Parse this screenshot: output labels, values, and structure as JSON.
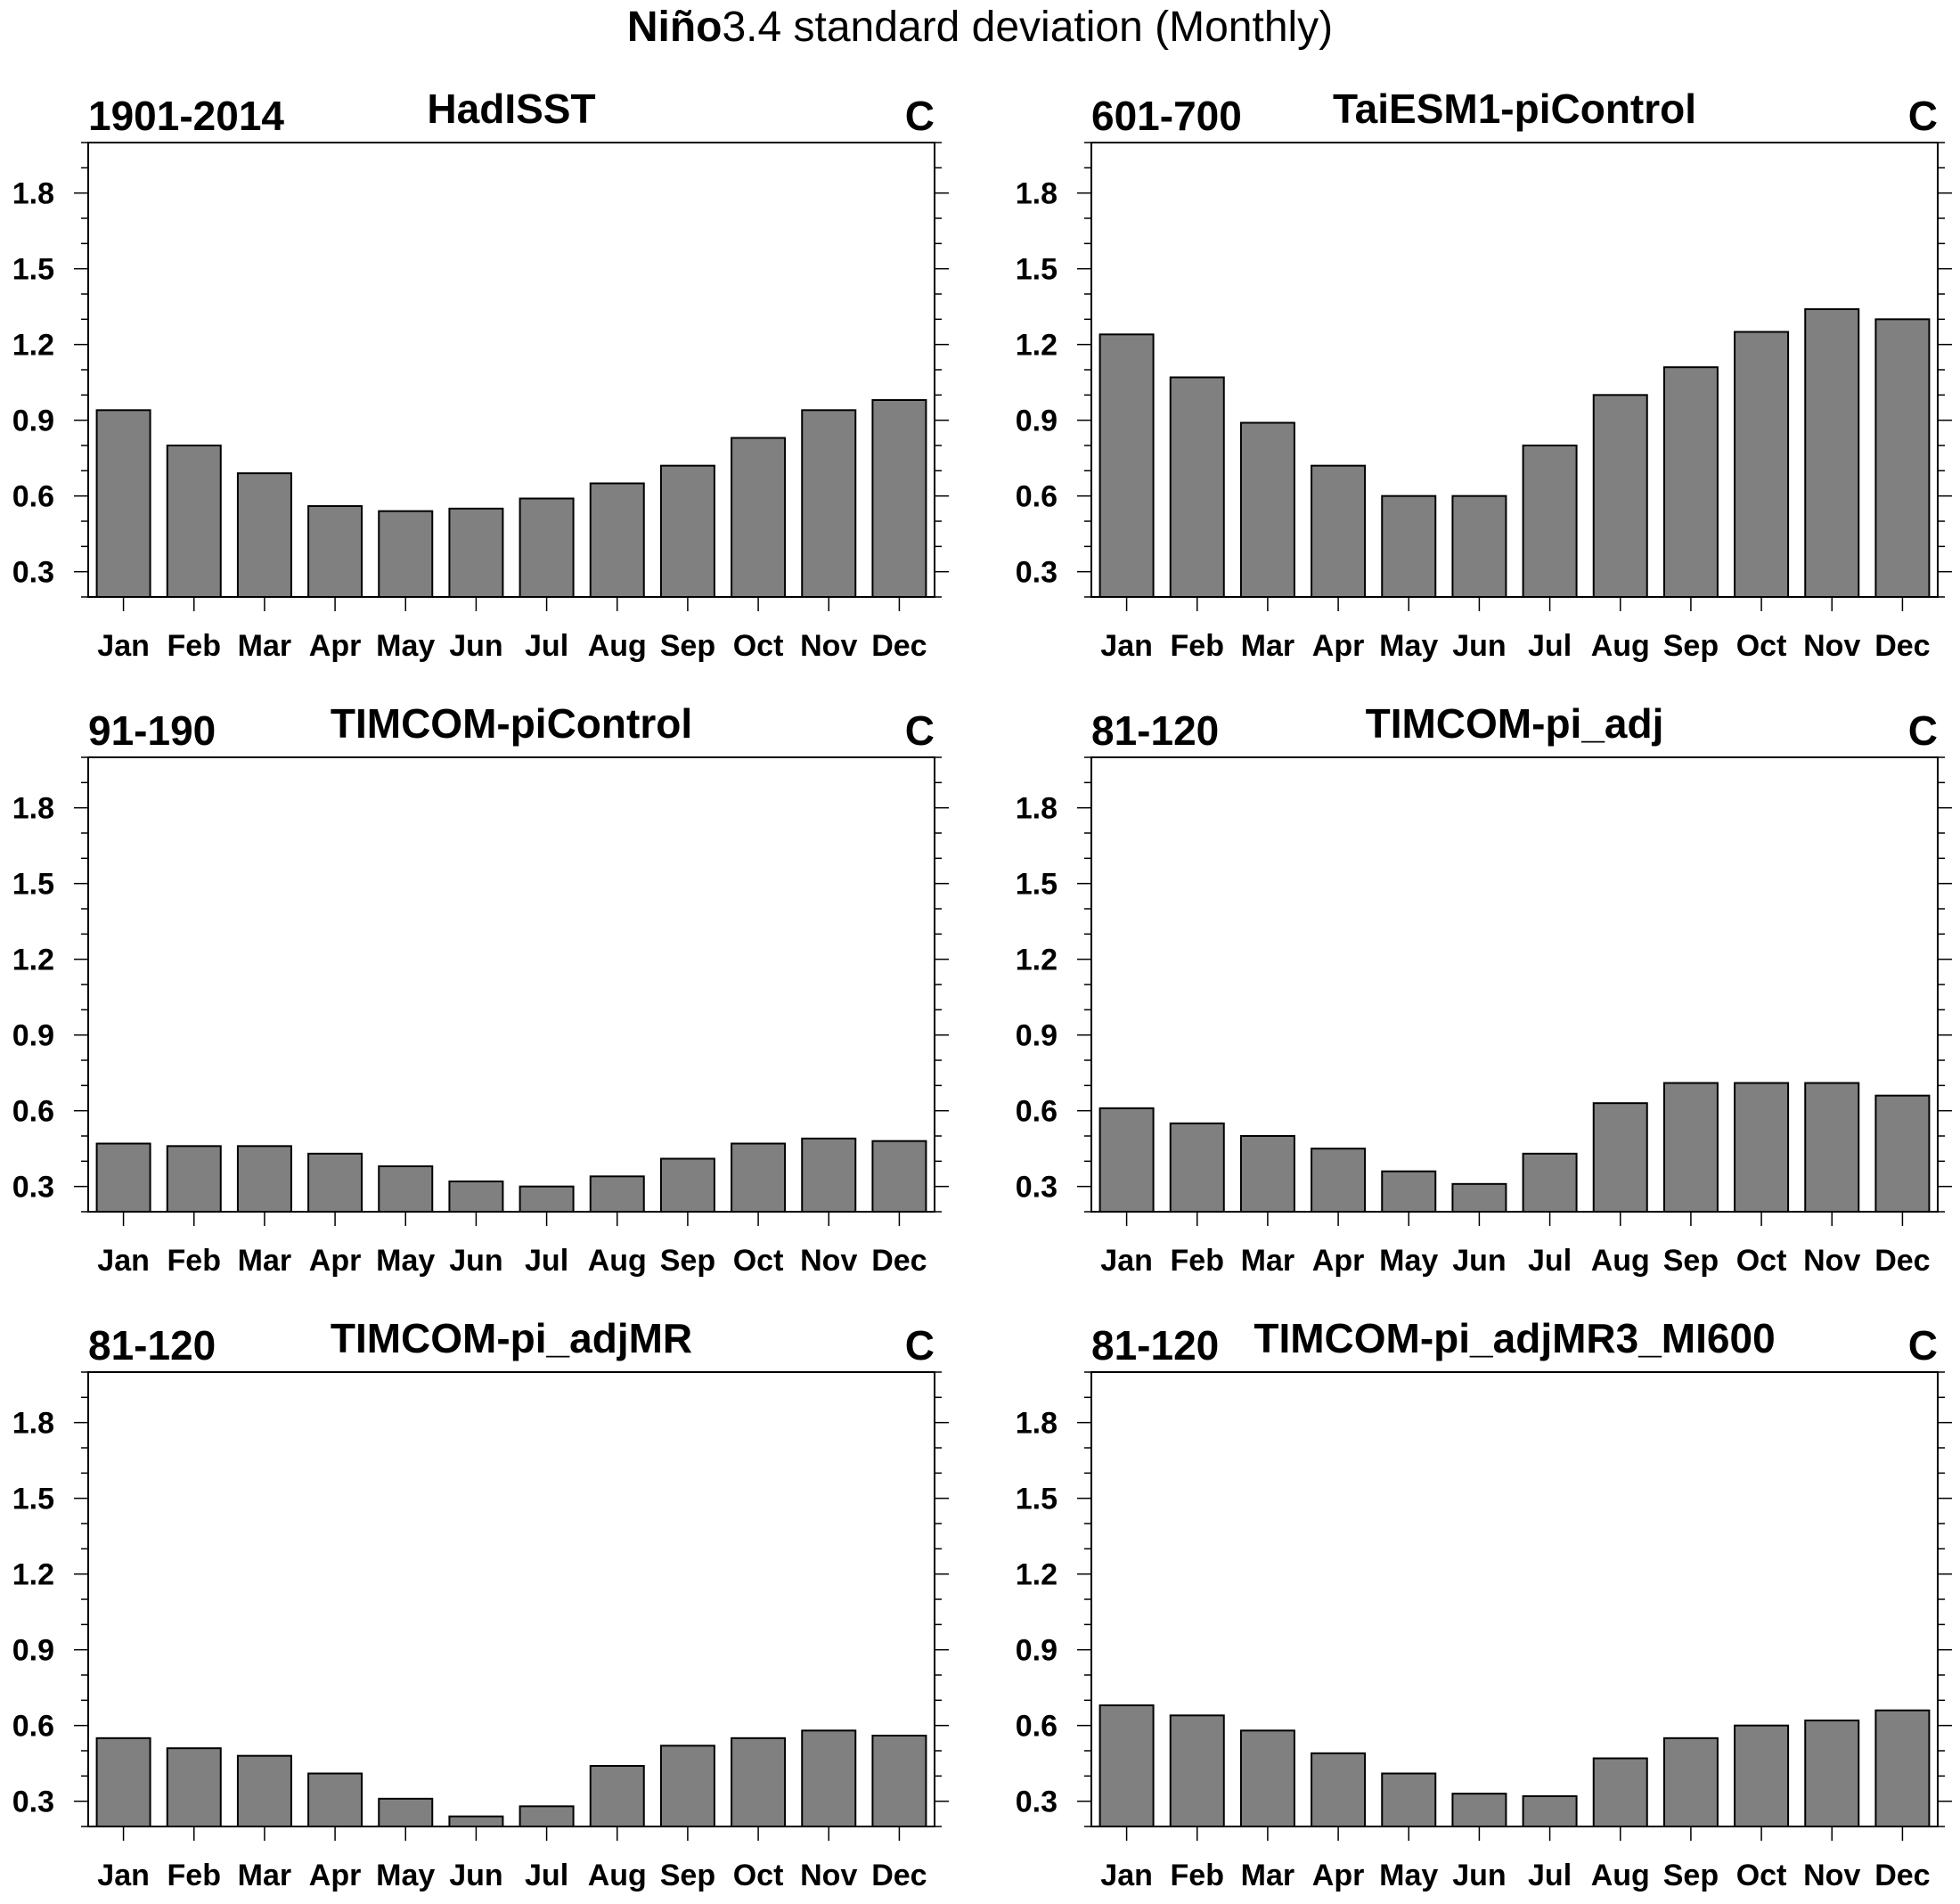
{
  "figure": {
    "title_bold": "Niño",
    "title_rest": "3.4 standard deviation (Monthly)"
  },
  "chart_data": [
    {
      "type": "bar",
      "title": "HadISST",
      "left_label": "1901-2014",
      "right_label": "C",
      "categories": [
        "Jan",
        "Feb",
        "Mar",
        "Apr",
        "May",
        "Jun",
        "Jul",
        "Aug",
        "Sep",
        "Oct",
        "Nov",
        "Dec"
      ],
      "values": [
        0.94,
        0.8,
        0.69,
        0.56,
        0.54,
        0.55,
        0.59,
        0.65,
        0.72,
        0.83,
        0.94,
        0.98
      ],
      "ylim": [
        0.2,
        2.0
      ],
      "yticks": [
        "0.3",
        "0.6",
        "0.9",
        "1.2",
        "1.5",
        "1.8"
      ],
      "grid": false,
      "bar_color": "#808080"
    },
    {
      "type": "bar",
      "title": "TaiESM1-piControl",
      "left_label": "601-700",
      "right_label": "C",
      "categories": [
        "Jan",
        "Feb",
        "Mar",
        "Apr",
        "May",
        "Jun",
        "Jul",
        "Aug",
        "Sep",
        "Oct",
        "Nov",
        "Dec"
      ],
      "values": [
        1.24,
        1.07,
        0.89,
        0.72,
        0.6,
        0.6,
        0.8,
        1.0,
        1.11,
        1.25,
        1.34,
        1.3
      ],
      "ylim": [
        0.2,
        2.0
      ],
      "yticks": [
        "0.3",
        "0.6",
        "0.9",
        "1.2",
        "1.5",
        "1.8"
      ],
      "grid": false,
      "bar_color": "#808080"
    },
    {
      "type": "bar",
      "title": "TIMCOM-piControl",
      "left_label": "91-190",
      "right_label": "C",
      "categories": [
        "Jan",
        "Feb",
        "Mar",
        "Apr",
        "May",
        "Jun",
        "Jul",
        "Aug",
        "Sep",
        "Oct",
        "Nov",
        "Dec"
      ],
      "values": [
        0.47,
        0.46,
        0.46,
        0.43,
        0.38,
        0.32,
        0.3,
        0.34,
        0.41,
        0.47,
        0.49,
        0.48
      ],
      "ylim": [
        0.2,
        2.0
      ],
      "yticks": [
        "0.3",
        "0.6",
        "0.9",
        "1.2",
        "1.5",
        "1.8"
      ],
      "grid": false,
      "bar_color": "#808080"
    },
    {
      "type": "bar",
      "title": "TIMCOM-pi_adj",
      "left_label": "81-120",
      "right_label": "C",
      "categories": [
        "Jan",
        "Feb",
        "Mar",
        "Apr",
        "May",
        "Jun",
        "Jul",
        "Aug",
        "Sep",
        "Oct",
        "Nov",
        "Dec"
      ],
      "values": [
        0.61,
        0.55,
        0.5,
        0.45,
        0.36,
        0.31,
        0.43,
        0.63,
        0.71,
        0.71,
        0.71,
        0.66
      ],
      "ylim": [
        0.2,
        2.0
      ],
      "yticks": [
        "0.3",
        "0.6",
        "0.9",
        "1.2",
        "1.5",
        "1.8"
      ],
      "grid": false,
      "bar_color": "#808080"
    },
    {
      "type": "bar",
      "title": "TIMCOM-pi_adjMR",
      "left_label": "81-120",
      "right_label": "C",
      "categories": [
        "Jan",
        "Feb",
        "Mar",
        "Apr",
        "May",
        "Jun",
        "Jul",
        "Aug",
        "Sep",
        "Oct",
        "Nov",
        "Dec"
      ],
      "values": [
        0.55,
        0.51,
        0.48,
        0.41,
        0.31,
        0.24,
        0.28,
        0.44,
        0.52,
        0.55,
        0.58,
        0.56
      ],
      "ylim": [
        0.2,
        2.0
      ],
      "yticks": [
        "0.3",
        "0.6",
        "0.9",
        "1.2",
        "1.5",
        "1.8"
      ],
      "grid": false,
      "bar_color": "#808080"
    },
    {
      "type": "bar",
      "title": "TIMCOM-pi_adjMR3_MI600",
      "left_label": "81-120",
      "right_label": "C",
      "categories": [
        "Jan",
        "Feb",
        "Mar",
        "Apr",
        "May",
        "Jun",
        "Jul",
        "Aug",
        "Sep",
        "Oct",
        "Nov",
        "Dec"
      ],
      "values": [
        0.68,
        0.64,
        0.58,
        0.49,
        0.41,
        0.33,
        0.32,
        0.47,
        0.55,
        0.6,
        0.62,
        0.66
      ],
      "ylim": [
        0.2,
        2.0
      ],
      "yticks": [
        "0.3",
        "0.6",
        "0.9",
        "1.2",
        "1.5",
        "1.8"
      ],
      "grid": false,
      "bar_color": "#808080"
    }
  ]
}
